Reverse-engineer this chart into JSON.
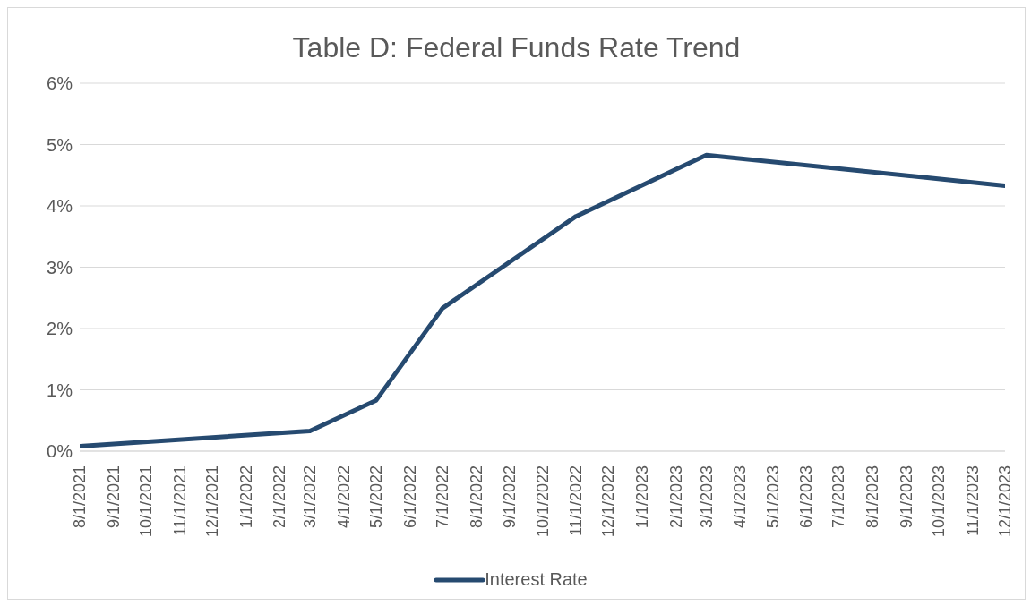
{
  "chart_data": {
    "type": "line",
    "title": "Table D: Federal Funds Rate Trend",
    "x": [
      "2021-08-01",
      "2022-03-01",
      "2022-05-01",
      "2022-07-01",
      "2022-11-01",
      "2023-03-01",
      "2023-12-01"
    ],
    "series": [
      {
        "name": "Interest Rate",
        "color": "#264a70",
        "values": [
          0.08,
          0.33,
          0.83,
          2.33,
          3.83,
          4.83,
          4.33
        ]
      }
    ],
    "xlim": [
      "2021-08-01",
      "2023-12-01"
    ],
    "xticks": [
      {
        "value": "2021-08-01",
        "label": "8/1/2021"
      },
      {
        "value": "2021-09-01",
        "label": "9/1/2021"
      },
      {
        "value": "2021-10-01",
        "label": "10/1/2021"
      },
      {
        "value": "2021-11-01",
        "label": "11/1/2021"
      },
      {
        "value": "2021-12-01",
        "label": "12/1/2021"
      },
      {
        "value": "2022-01-01",
        "label": "1/1/2022"
      },
      {
        "value": "2022-02-01",
        "label": "2/1/2022"
      },
      {
        "value": "2022-03-01",
        "label": "3/1/2022"
      },
      {
        "value": "2022-04-01",
        "label": "4/1/2022"
      },
      {
        "value": "2022-05-01",
        "label": "5/1/2022"
      },
      {
        "value": "2022-06-01",
        "label": "6/1/2022"
      },
      {
        "value": "2022-07-01",
        "label": "7/1/2022"
      },
      {
        "value": "2022-08-01",
        "label": "8/1/2022"
      },
      {
        "value": "2022-09-01",
        "label": "9/1/2022"
      },
      {
        "value": "2022-10-01",
        "label": "10/1/2022"
      },
      {
        "value": "2022-11-01",
        "label": "11/1/2022"
      },
      {
        "value": "2022-12-01",
        "label": "12/1/2022"
      },
      {
        "value": "2023-01-01",
        "label": "1/1/2023"
      },
      {
        "value": "2023-02-01",
        "label": "2/1/2023"
      },
      {
        "value": "2023-03-01",
        "label": "3/1/2023"
      },
      {
        "value": "2023-04-01",
        "label": "4/1/2023"
      },
      {
        "value": "2023-05-01",
        "label": "5/1/2023"
      },
      {
        "value": "2023-06-01",
        "label": "6/1/2023"
      },
      {
        "value": "2023-07-01",
        "label": "7/1/2023"
      },
      {
        "value": "2023-08-01",
        "label": "8/1/2023"
      },
      {
        "value": "2023-09-01",
        "label": "9/1/2023"
      },
      {
        "value": "2023-10-01",
        "label": "10/1/2023"
      },
      {
        "value": "2023-11-01",
        "label": "11/1/2023"
      },
      {
        "value": "2023-12-01",
        "label": "12/1/2023"
      }
    ],
    "ylim": [
      0,
      6
    ],
    "yticks": [
      {
        "value": 0,
        "label": "0%"
      },
      {
        "value": 1,
        "label": "1%"
      },
      {
        "value": 2,
        "label": "2%"
      },
      {
        "value": 3,
        "label": "3%"
      },
      {
        "value": 4,
        "label": "4%"
      },
      {
        "value": 5,
        "label": "5%"
      },
      {
        "value": 6,
        "label": "6%"
      }
    ],
    "grid": "y",
    "legend": "bottom",
    "marker": "none",
    "line_style": "solid"
  }
}
